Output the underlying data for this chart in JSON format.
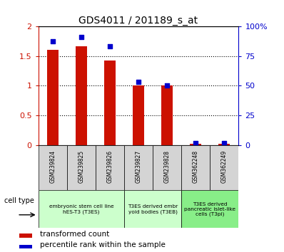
{
  "title": "GDS4011 / 201189_s_at",
  "samples": [
    "GSM239824",
    "GSM239825",
    "GSM239826",
    "GSM239827",
    "GSM239828",
    "GSM362248",
    "GSM362249"
  ],
  "transformed_count": [
    1.6,
    1.67,
    1.43,
    1.0,
    1.0,
    0.02,
    0.02
  ],
  "percentile_rank": [
    0.875,
    0.91,
    0.835,
    0.53,
    0.5,
    0.015,
    0.015
  ],
  "bar_color": "#cc1100",
  "dot_color": "#0000cc",
  "ylim_left": [
    0,
    2
  ],
  "ylim_right": [
    0,
    1
  ],
  "yticks_left": [
    0,
    0.5,
    1.0,
    1.5,
    2.0
  ],
  "yticks_right": [
    0,
    0.25,
    0.5,
    0.75,
    1.0
  ],
  "ytick_labels_left": [
    "0",
    "0.5",
    "1",
    "1.5",
    "2"
  ],
  "ytick_labels_right": [
    "0",
    "25",
    "50",
    "75",
    "100%"
  ],
  "cell_type_groups": [
    {
      "cols": [
        0,
        1,
        2
      ],
      "label": "embryonic stem cell line\nhES-T3 (T3ES)",
      "color": "#ccffcc"
    },
    {
      "cols": [
        3,
        4
      ],
      "label": "T3ES derived embr\nyoid bodies (T3EB)",
      "color": "#ccffcc"
    },
    {
      "cols": [
        5,
        6
      ],
      "label": "T3ES derived\npancreatic islet-like\ncells (T3pi)",
      "color": "#88ee88"
    }
  ],
  "legend_labels": [
    "transformed count",
    "percentile rank within the sample"
  ],
  "legend_colors": [
    "#cc1100",
    "#0000cc"
  ],
  "cell_type_label": "cell type",
  "bar_width": 0.4,
  "tick_color_left": "#cc1100",
  "tick_color_right": "#0000cc",
  "grid_yticks": [
    0.5,
    1.0,
    1.5
  ]
}
